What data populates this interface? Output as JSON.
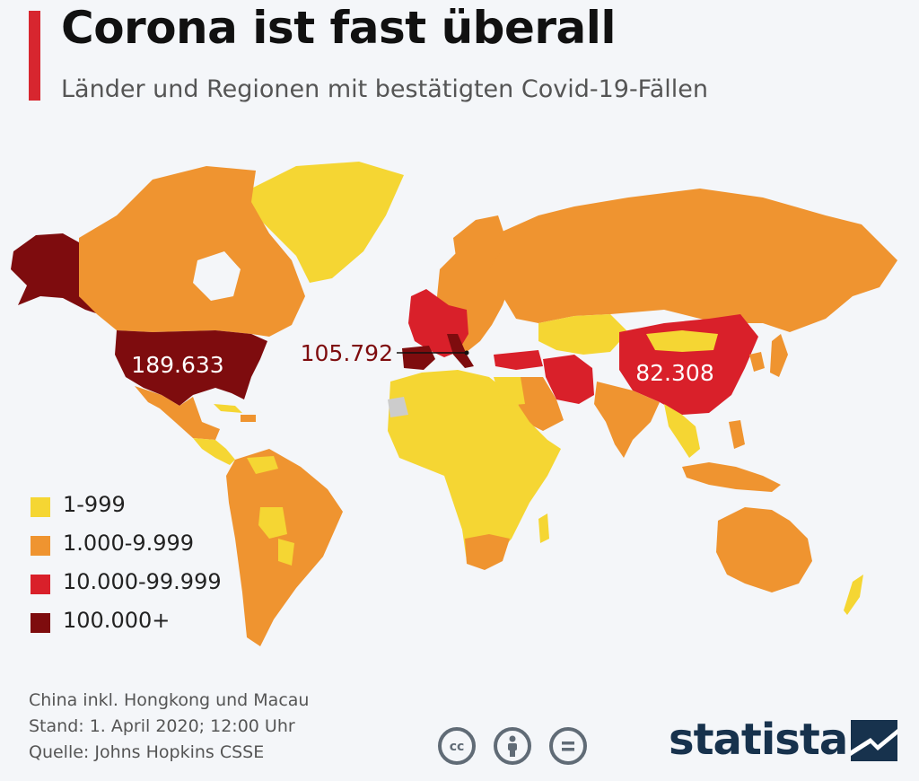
{
  "header": {
    "title": "Corona ist fast überall",
    "subtitle": "Länder und Regionen mit bestätigten Covid-19-Fällen"
  },
  "colors": {
    "bin_1_999": "#f5d633",
    "bin_1000_9999": "#ef9430",
    "bin_10000_99999": "#d9202a",
    "bin_100000_plus": "#7e0c0e",
    "no_data": "#cccccc"
  },
  "map": {
    "callouts": {
      "usa": "189.633",
      "italy": "105.792",
      "china": "82.308"
    }
  },
  "legend": {
    "items": [
      {
        "label": "1-999",
        "color": "#f5d633"
      },
      {
        "label": "1.000-9.999",
        "color": "#ef9430"
      },
      {
        "label": "10.000-99.999",
        "color": "#d9202a"
      },
      {
        "label": "100.000+",
        "color": "#7e0c0e"
      }
    ]
  },
  "footer": {
    "note_1": "China inkl. Hongkong und Macau",
    "note_2": "Stand: 1. April 2020; 12:00 Uhr",
    "source": "Quelle: Johns Hopkins CSSE",
    "cc_icons": [
      "cc-icon",
      "attribution-icon",
      "no-derivatives-icon"
    ],
    "brand": "statista"
  }
}
